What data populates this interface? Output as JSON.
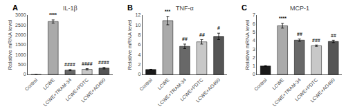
{
  "chart_data": [
    {
      "type": "bar",
      "title": "IL-1β",
      "ylabel": "Relative mRNA level",
      "categories": [
        "Control",
        "LCWE",
        "LCWE+TRAM-34",
        "LCWE+PDTC",
        "LCWE+AG490"
      ],
      "values": [
        1.0,
        2680,
        220,
        260,
        320
      ],
      "errors": [
        0.05,
        80,
        30,
        35,
        40
      ],
      "colors": [
        "#1a1a1a",
        "#aaaaaa",
        "#686868",
        "#c8c8c8",
        "#555555"
      ],
      "ylim": [
        0,
        3000
      ],
      "yticks": [
        0,
        500,
        1000,
        1500,
        2000,
        2500,
        3000
      ],
      "grid": false,
      "annotations": [
        {
          "text": "A"
        },
        {
          "x": "LCWE",
          "text": "****"
        },
        {
          "x": "LCWE+TRAM-34",
          "text": "####"
        },
        {
          "x": "LCWE+PDTC",
          "text": "####"
        },
        {
          "x": "LCWE+AG490",
          "text": "####"
        }
      ]
    },
    {
      "type": "bar",
      "title": "TNF-α",
      "ylabel": "Relative mRNA level",
      "categories": [
        "Control",
        "LCWE",
        "LCWE+TRAM-34",
        "LCWE+PDTC",
        "LCWE+AG490"
      ],
      "values": [
        1.0,
        10.9,
        5.7,
        6.6,
        7.7
      ],
      "errors": [
        0.05,
        0.85,
        0.45,
        0.45,
        0.65
      ],
      "colors": [
        "#1a1a1a",
        "#aaaaaa",
        "#686868",
        "#c8c8c8",
        "#555555"
      ],
      "ylim": [
        0,
        12
      ],
      "yticks": [
        0,
        2,
        4,
        6,
        8,
        10,
        12
      ],
      "grid": false,
      "annotations": [
        {
          "text": "B"
        },
        {
          "x": "LCWE",
          "text": "***"
        },
        {
          "x": "LCWE+TRAM-34",
          "text": "##"
        },
        {
          "x": "LCWE+PDTC",
          "text": "##"
        },
        {
          "x": "LCWE+AG490",
          "text": "#"
        }
      ]
    },
    {
      "type": "bar",
      "title": "MCP-1",
      "ylabel": "Relative mRNA level",
      "categories": [
        "Control",
        "LCWE",
        "LCWE+TRAM-34",
        "LCWE+PDTC",
        "LCWE+AG490"
      ],
      "values": [
        1.0,
        5.75,
        4.05,
        3.4,
        3.9
      ],
      "errors": [
        0.05,
        0.28,
        0.14,
        0.08,
        0.14
      ],
      "colors": [
        "#1a1a1a",
        "#aaaaaa",
        "#686868",
        "#c8c8c8",
        "#555555"
      ],
      "ylim": [
        0,
        7
      ],
      "yticks": [
        0,
        1,
        2,
        3,
        4,
        5,
        6,
        7
      ],
      "grid": false,
      "annotations": [
        {
          "text": "C"
        },
        {
          "x": "LCWE",
          "text": "****"
        },
        {
          "x": "LCWE+TRAM-34",
          "text": "##"
        },
        {
          "x": "LCWE+PDTC",
          "text": "###"
        },
        {
          "x": "LCWE+AG490",
          "text": "##"
        }
      ]
    }
  ]
}
